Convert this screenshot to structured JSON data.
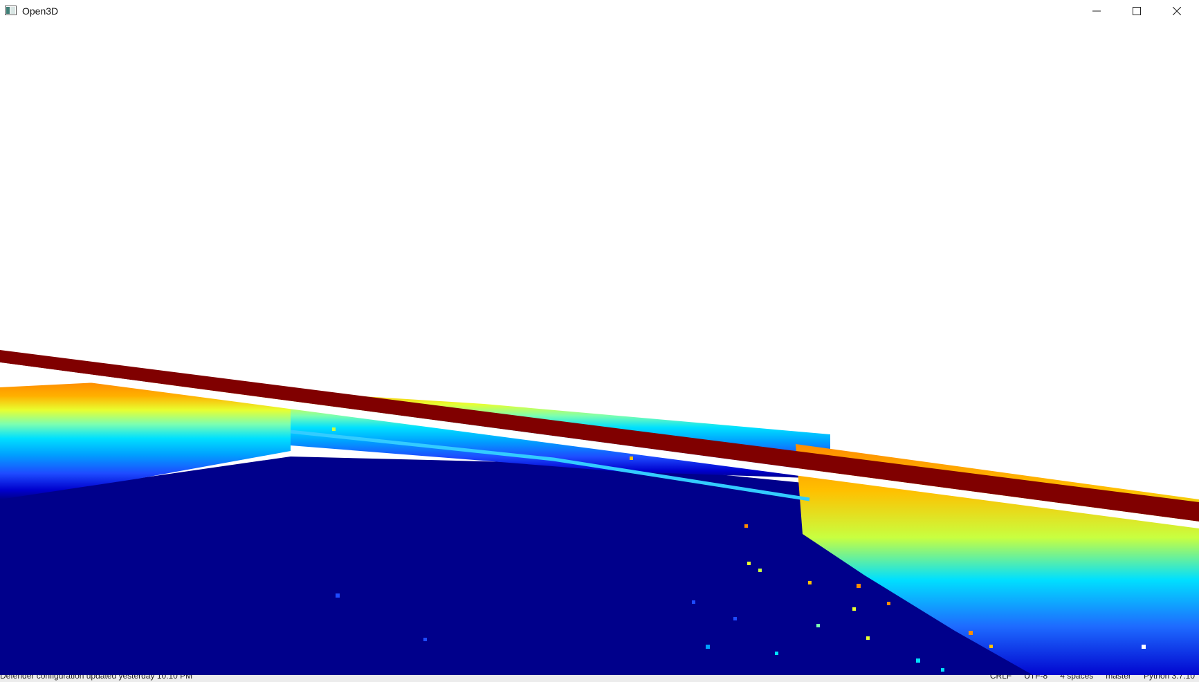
{
  "window": {
    "title": "Open3D",
    "icon": "app-window-icon",
    "controls": {
      "minimize": "minimize-icon",
      "maximize": "maximize-icon",
      "close": "close-icon"
    }
  },
  "viewport": {
    "content": "point-cloud",
    "background": "#ffffff",
    "colormap": [
      "#00008b",
      "#0000cd",
      "#1e4bff",
      "#00a0ff",
      "#00e0ff",
      "#7cffb0",
      "#e8ff30",
      "#ffc000",
      "#ff8c00",
      "#800000"
    ]
  },
  "underlying_taskbar": {
    "notification": "Defender configuration updated yesterday 10:10 PM",
    "status_items": [
      "CRLF",
      "UTF-8",
      "4 spaces",
      "master",
      "Python 3.7.10"
    ]
  }
}
